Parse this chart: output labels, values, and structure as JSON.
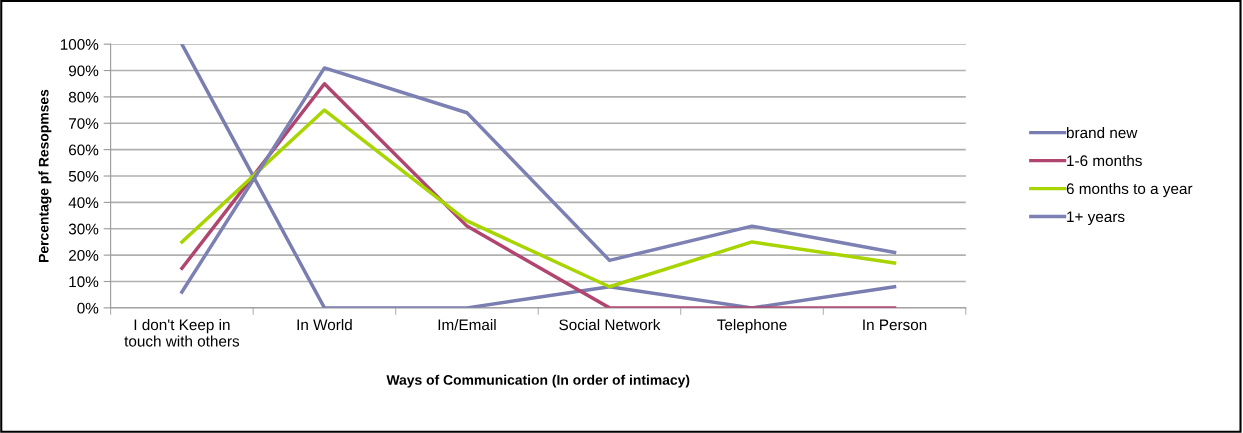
{
  "chart_data": {
    "type": "line",
    "xlabel": "Ways of Communication (In order of intimacy)",
    "ylabel": "Percentage pf Resopmses",
    "categories": [
      "I don't Keep in\ntouch with others",
      "In World",
      "Im/Email",
      "Social Network",
      "Telephone",
      "In Person"
    ],
    "series": [
      {
        "name": "brand new",
        "color": "#7a7db0",
        "values": [
          100,
          0,
          0,
          8,
          0,
          8
        ]
      },
      {
        "name": "1-6 months",
        "color": "#b0456f",
        "values": [
          15,
          85,
          31,
          0,
          0,
          0
        ]
      },
      {
        "name": "6 months to a year",
        "color": "#a8d400",
        "values": [
          25,
          75,
          33,
          8,
          25,
          17
        ]
      },
      {
        "name": "1+ years",
        "color": "#7c80b2",
        "values": [
          6,
          91,
          74,
          18,
          31,
          21
        ]
      }
    ],
    "ylim": [
      0,
      100
    ],
    "yticks": [
      {
        "value": 0,
        "label": "0%"
      },
      {
        "value": 10,
        "label": "10%"
      },
      {
        "value": 20,
        "label": "20%"
      },
      {
        "value": 30,
        "label": "30%"
      },
      {
        "value": 40,
        "label": "40%"
      },
      {
        "value": 50,
        "label": "50%"
      },
      {
        "value": 60,
        "label": "60%"
      },
      {
        "value": 70,
        "label": "70%"
      },
      {
        "value": 80,
        "label": "80%"
      },
      {
        "value": 90,
        "label": "90%"
      },
      {
        "value": 100,
        "label": "100%"
      }
    ],
    "grid": "y",
    "legend": "right",
    "marker": "none",
    "line_style": "solid"
  }
}
